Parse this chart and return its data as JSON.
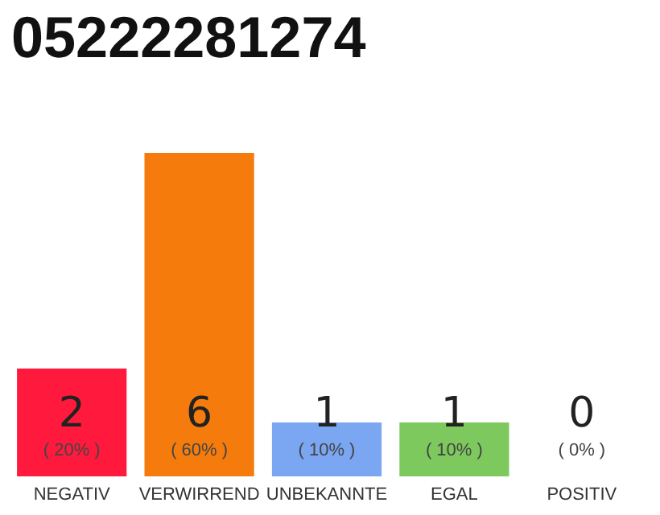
{
  "chart_data": {
    "type": "bar",
    "title": "05222281274",
    "categories": [
      "NEGATIV",
      "VERWIRREND",
      "UNBEKANNTE",
      "EGAL",
      "POSITIV"
    ],
    "values": [
      20,
      60,
      10,
      10,
      0
    ],
    "colors": [
      "#ff1a3d",
      "#f57c0c",
      "#7aa6f2",
      "#7dc95e",
      "#d9d9d9"
    ],
    "value_labels": [
      "( 20% )",
      "( 60% )",
      "( 10% )",
      "( 10% )",
      "( 0% )"
    ],
    "annotations": [
      "2",
      "6",
      "1",
      "1",
      "0"
    ]
  }
}
